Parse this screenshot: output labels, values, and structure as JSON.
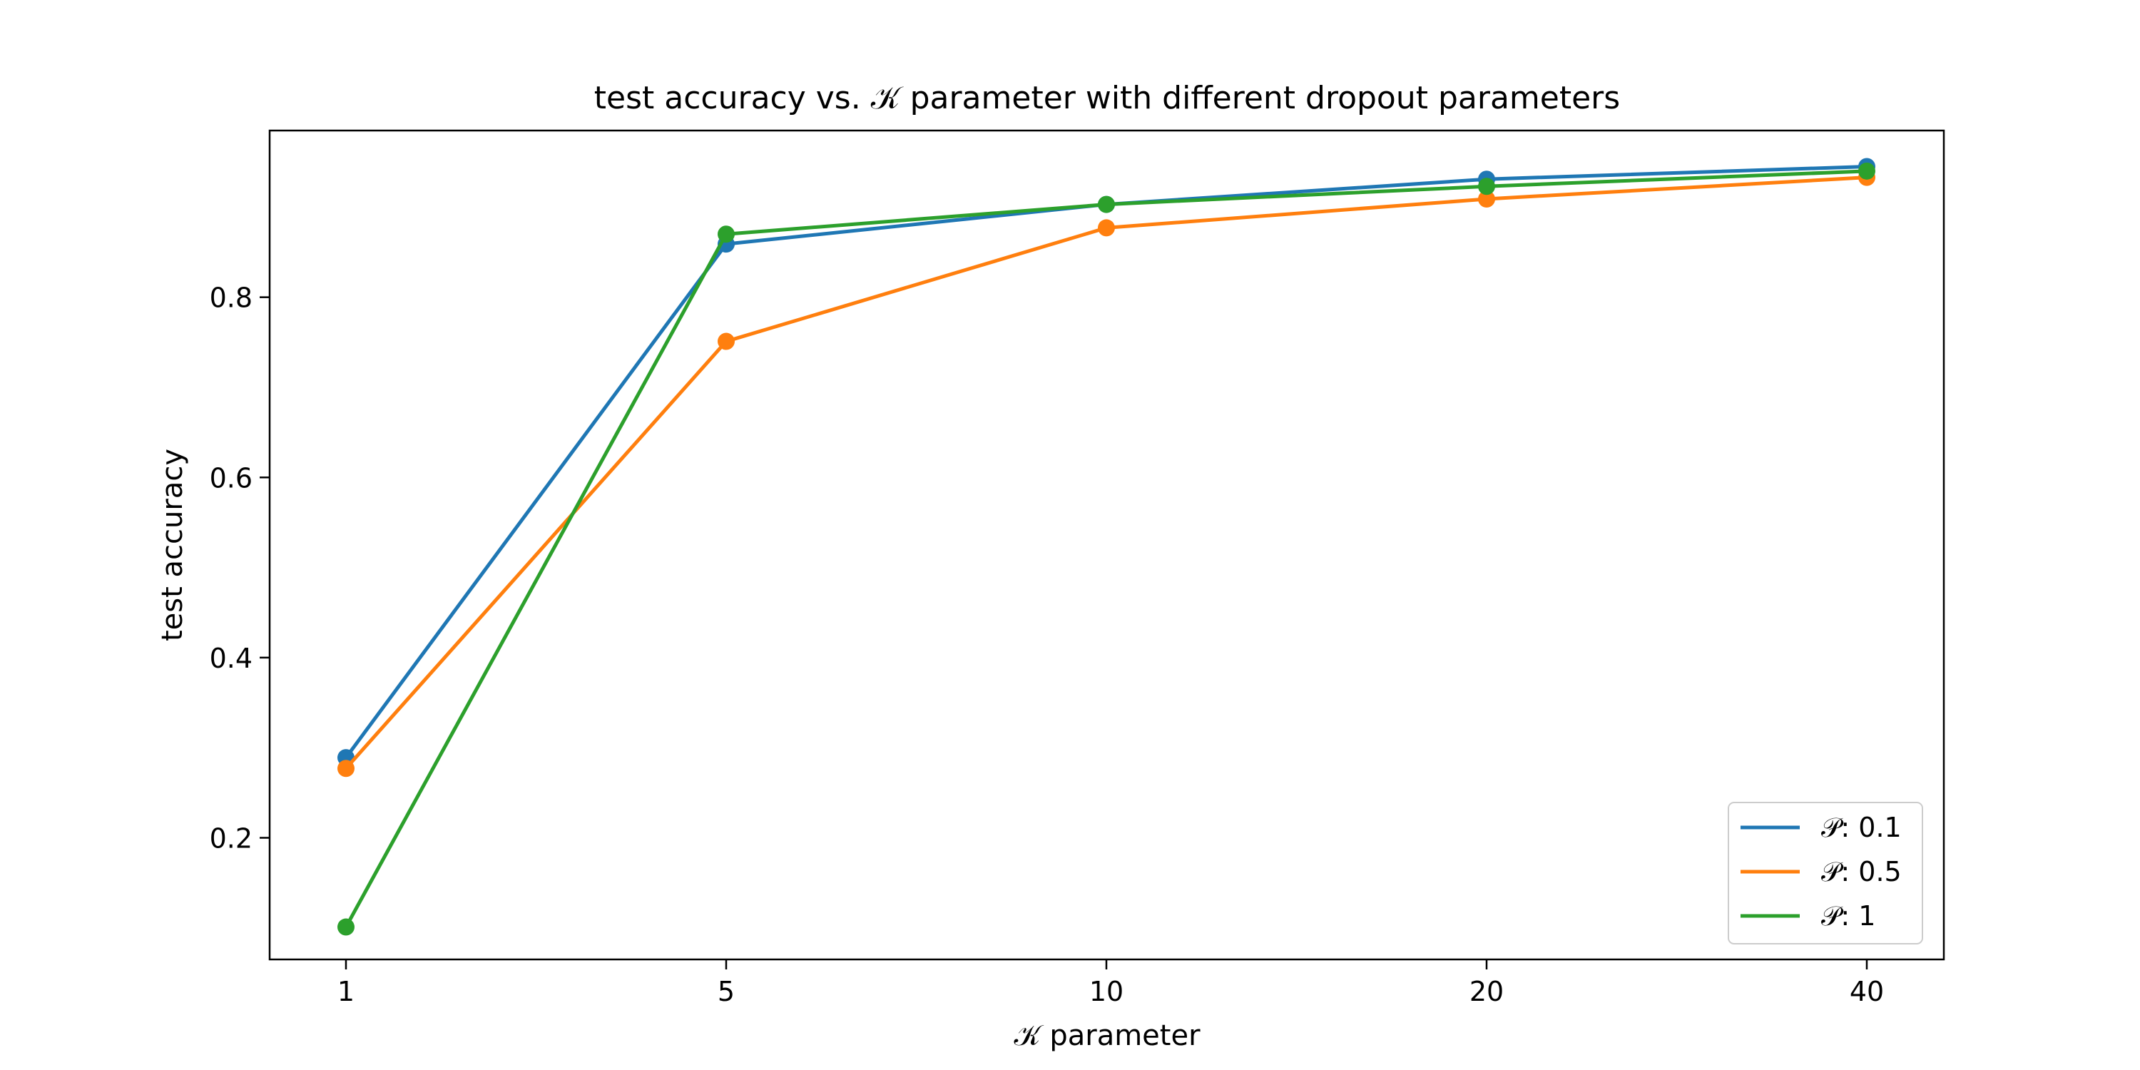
{
  "chart_data": {
    "type": "line",
    "title": "test accuracy vs. 𝒦 parameter with different dropout parameters",
    "xlabel": "𝒦 parameter",
    "ylabel": "test accuracy",
    "categories": [
      "1",
      "5",
      "10",
      "20",
      "40"
    ],
    "yticks": [
      "0.2",
      "0.4",
      "0.6",
      "0.8"
    ],
    "ylim": [
      0.065,
      0.985
    ],
    "grid": false,
    "legend_position": "bottom-right",
    "series": [
      {
        "name": "𝒫: 0.1",
        "color": "#1f77b4",
        "values": [
          0.289,
          0.859,
          0.903,
          0.931,
          0.945
        ]
      },
      {
        "name": "𝒫: 0.5",
        "color": "#ff7f0e",
        "values": [
          0.277,
          0.751,
          0.877,
          0.909,
          0.933
        ]
      },
      {
        "name": "𝒫: 1",
        "color": "#2ca02c",
        "values": [
          0.101,
          0.87,
          0.903,
          0.923,
          0.94
        ]
      }
    ]
  }
}
